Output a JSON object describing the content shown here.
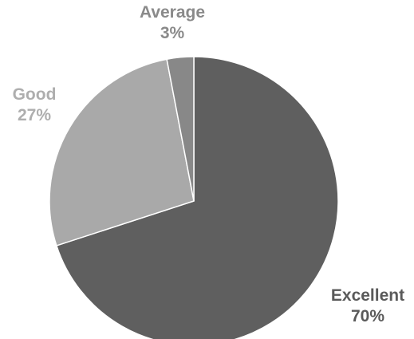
{
  "chart_data": {
    "type": "pie",
    "title": "",
    "slices": [
      {
        "label": "Excellent",
        "percent_label": "70%",
        "value": 70,
        "color": "#5f5f5f",
        "label_color": "#5a5a5a"
      },
      {
        "label": "Good",
        "percent_label": "27%",
        "value": 27,
        "color": "#a9a9a9",
        "label_color": "#aeaeae"
      },
      {
        "label": "Average",
        "percent_label": "3%",
        "value": 3,
        "color": "#888888",
        "label_color": "#8a8a8a"
      }
    ],
    "start_angle_deg": 0,
    "direction": "clockwise",
    "legend": "none"
  }
}
